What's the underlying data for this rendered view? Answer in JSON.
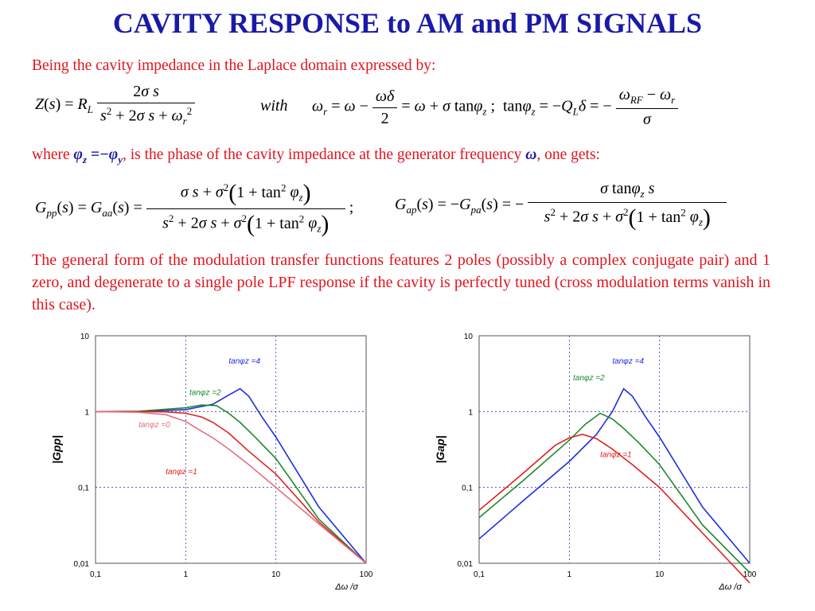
{
  "title": "CAVITY RESPONSE to AM and PM SIGNALS",
  "intro": "Being the cavity impedance in the Laplace domain expressed by:",
  "phase_sentence": {
    "where": "where",
    "middle": ", is the phase of the cavity impedance at the generator frequency",
    "end": ", one gets:"
  },
  "eq_with": "with",
  "body_text": "The general form of the modulation transfer functions features 2 poles (possibly a complex conjugate pair) and 1 zero, and degenerate to a single pole LPF response if the cavity is perfectly tuned (cross modulation terms vanish in this case).",
  "colors": {
    "title": "#1a1aa6",
    "text": "#e0141e",
    "blue": "#1f2ee0",
    "green": "#1e8a2a",
    "red": "#e32020",
    "pink": "#e07080"
  },
  "chart_data": [
    {
      "type": "line",
      "log_x": true,
      "log_y": true,
      "xlim": [
        0.1,
        100
      ],
      "ylim": [
        0.01,
        10
      ],
      "x_ticks": [
        "0,1",
        "1",
        "10",
        "100"
      ],
      "y_ticks": [
        "0,01",
        "0,1",
        "1",
        "10"
      ],
      "xlabel": "Δω /σ",
      "ylabel": "|Gpp|",
      "grid": true,
      "series": [
        {
          "name": "tanφz =4",
          "color": "#1f2ee0",
          "x": [
            0.1,
            0.3,
            1,
            2,
            3,
            4,
            5,
            7,
            10,
            30,
            100
          ],
          "y": [
            1,
            1.003,
            1.06,
            1.25,
            1.65,
            2.0,
            1.6,
            0.85,
            0.46,
            0.055,
            0.01
          ]
        },
        {
          "name": "tanφz =2",
          "color": "#1e8a2a",
          "x": [
            0.1,
            0.3,
            1,
            1.5,
            2.2,
            3,
            4,
            6,
            10,
            30,
            100
          ],
          "y": [
            1,
            1.01,
            1.12,
            1.22,
            1.2,
            0.95,
            0.72,
            0.45,
            0.24,
            0.038,
            0.01
          ]
        },
        {
          "name": "tanφz =1",
          "color": "#e32020",
          "x": [
            0.1,
            0.3,
            0.6,
            1,
            1.5,
            2,
            3,
            5,
            10,
            30,
            100
          ],
          "y": [
            1,
            1,
            0.99,
            0.95,
            0.85,
            0.72,
            0.52,
            0.3,
            0.15,
            0.035,
            0.01
          ]
        },
        {
          "name": "tanφz =0",
          "color": "#e07080",
          "x": [
            0.1,
            0.3,
            0.6,
            1,
            1.5,
            2,
            3,
            5,
            10,
            30,
            100
          ],
          "y": [
            1,
            0.98,
            0.91,
            0.74,
            0.55,
            0.45,
            0.32,
            0.2,
            0.1,
            0.033,
            0.01
          ]
        }
      ]
    },
    {
      "type": "line",
      "log_x": true,
      "log_y": true,
      "xlim": [
        0.1,
        100
      ],
      "ylim": [
        0.01,
        10
      ],
      "x_ticks": [
        "0,1",
        "1",
        "10",
        "100"
      ],
      "y_ticks": [
        "0,01",
        "0,1",
        "1",
        "10"
      ],
      "xlabel": "Δω /σ",
      "ylabel": "|Gap|",
      "grid": true,
      "series": [
        {
          "name": "tanφz =4",
          "color": "#1f2ee0",
          "x": [
            0.1,
            0.3,
            1,
            2,
            3,
            4,
            5,
            7,
            10,
            30,
            100
          ],
          "y": [
            0.021,
            0.065,
            0.22,
            0.5,
            1.0,
            2.0,
            1.6,
            0.85,
            0.46,
            0.055,
            0.01
          ]
        },
        {
          "name": "tanφz =2",
          "color": "#1e8a2a",
          "x": [
            0.1,
            0.3,
            1,
            1.5,
            2.2,
            3,
            4,
            6,
            10,
            30,
            100
          ],
          "y": [
            0.04,
            0.12,
            0.42,
            0.68,
            0.95,
            0.8,
            0.6,
            0.38,
            0.2,
            0.032,
            0.0075
          ]
        },
        {
          "name": "tanφz =1",
          "color": "#e32020",
          "x": [
            0.1,
            0.3,
            0.7,
            1,
            1.4,
            2,
            3,
            5,
            10,
            30,
            100
          ],
          "y": [
            0.05,
            0.15,
            0.36,
            0.45,
            0.5,
            0.44,
            0.32,
            0.2,
            0.1,
            0.025,
            0.0055
          ]
        }
      ]
    }
  ]
}
